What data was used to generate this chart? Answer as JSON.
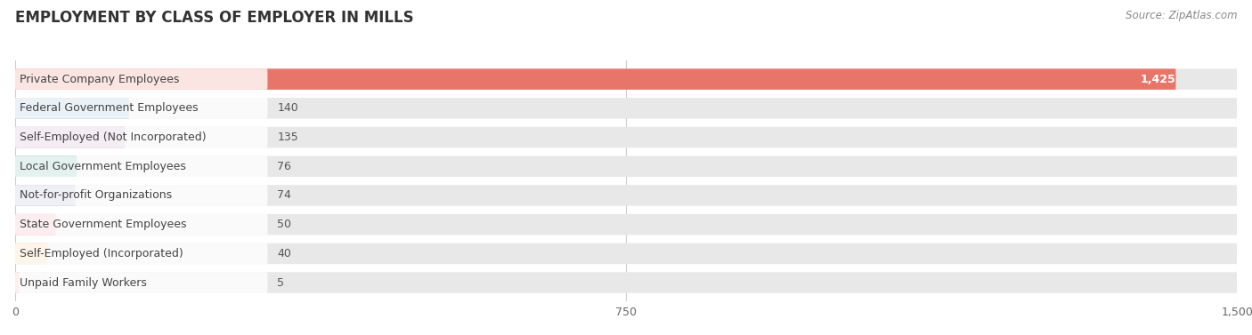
{
  "title": "EMPLOYMENT BY CLASS OF EMPLOYER IN MILLS",
  "source": "Source: ZipAtlas.com",
  "categories": [
    "Private Company Employees",
    "Federal Government Employees",
    "Self-Employed (Not Incorporated)",
    "Local Government Employees",
    "Not-for-profit Organizations",
    "State Government Employees",
    "Self-Employed (Incorporated)",
    "Unpaid Family Workers"
  ],
  "values": [
    1425,
    140,
    135,
    76,
    74,
    50,
    40,
    5
  ],
  "bar_colors": [
    "#e8756a",
    "#90b8d8",
    "#c49ec4",
    "#6dbdad",
    "#a8a8d0",
    "#f0a0b0",
    "#f5c98a",
    "#f0a898"
  ],
  "bar_bg_color": "#e8e8e8",
  "xlim": [
    0,
    1500
  ],
  "xticks": [
    0,
    750,
    1500
  ],
  "background_color": "#ffffff",
  "title_fontsize": 12,
  "label_fontsize": 9,
  "value_fontsize": 9,
  "source_fontsize": 8.5,
  "bar_height": 0.72,
  "bar_spacing": 1.0
}
